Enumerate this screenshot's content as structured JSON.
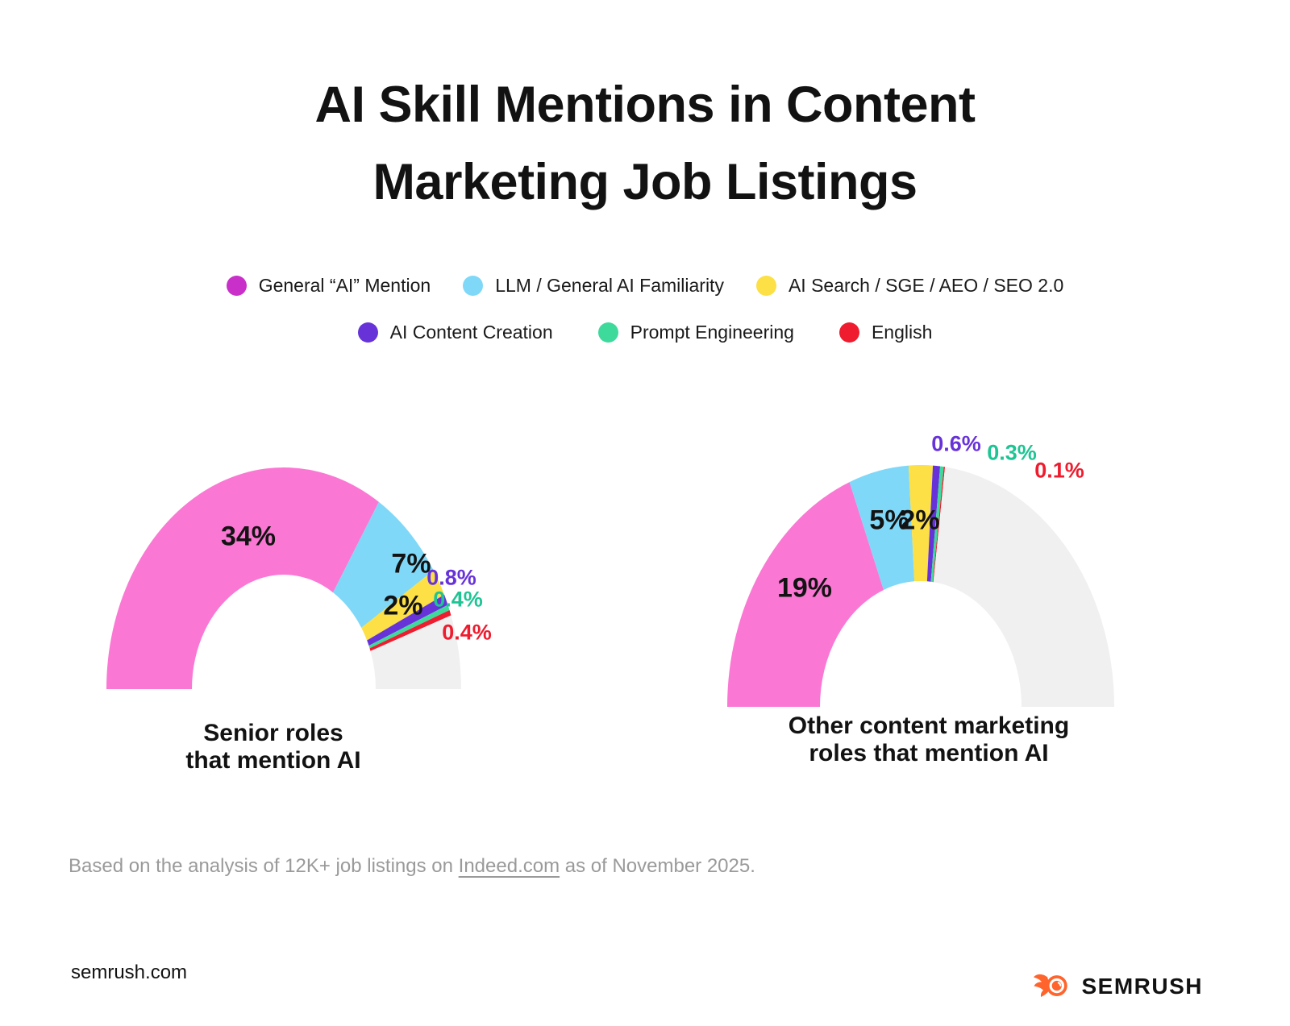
{
  "title_lines": [
    "AI Skill Mentions in Content",
    "Marketing Job Listings"
  ],
  "legend": [
    {
      "label": "General “AI” Mention",
      "color": "#C92FC9"
    },
    {
      "label": "LLM / General AI Familiarity",
      "color": "#7FD8F8"
    },
    {
      "label": "AI Search / SGE / AEO / SEO 2.0",
      "color": "#FCE045"
    },
    {
      "label": "AI Content Creation",
      "color": "#6733D9"
    },
    {
      "label": "Prompt Engineering",
      "color": "#3EDA9B"
    },
    {
      "label": "English",
      "color": "#EE1C2E"
    }
  ],
  "chart_data": [
    {
      "type": "pie",
      "variant": "half-donut-gauge",
      "title": "Senior roles that mention AI",
      "caption_lines": [
        "Senior roles",
        "that mention AI"
      ],
      "gauge_total_percent": 50,
      "categories": [
        "General “AI” Mention",
        "LLM / General AI Familiarity",
        "AI Search / SGE / AEO / SEO 2.0",
        "AI Content Creation",
        "Prompt Engineering",
        "English"
      ],
      "values": [
        34,
        7,
        2,
        0.8,
        0.4,
        0.4
      ],
      "labels": [
        "34%",
        "7%",
        "2%",
        "0.8%",
        "0.4%",
        "0.4%"
      ],
      "colors": [
        "#FB77D4",
        "#7FD8F8",
        "#FCE045",
        "#6733D9",
        "#3EDA9B",
        "#EE1C2E"
      ],
      "label_colors": [
        "#131313",
        "#131313",
        "#131313",
        "#6733D9",
        "#1EC494",
        "#EE1C2E"
      ],
      "remainder_color": "#F0F0F0"
    },
    {
      "type": "pie",
      "variant": "half-donut-gauge",
      "title": "Other content marketing roles that mention AI",
      "caption_lines": [
        "Other content marketing",
        "roles that mention AI"
      ],
      "gauge_total_percent": 50,
      "categories": [
        "General “AI” Mention",
        "LLM / General AI Familiarity",
        "AI Search / SGE / AEO / SEO 2.0",
        "AI Content Creation",
        "Prompt Engineering",
        "English"
      ],
      "values": [
        19,
        5,
        2,
        0.6,
        0.3,
        0.1
      ],
      "labels": [
        "19%",
        "5%",
        "2%",
        "0.6%",
        "0.3%",
        "0.1%"
      ],
      "colors": [
        "#FB77D4",
        "#7FD8F8",
        "#FCE045",
        "#6733D9",
        "#3EDA9B",
        "#EE1C2E"
      ],
      "label_colors": [
        "#131313",
        "#131313",
        "#131313",
        "#6733D9",
        "#1EC494",
        "#EE1C2E"
      ],
      "remainder_color": "#F0F0F0"
    }
  ],
  "footnote": {
    "prefix": "Based on the analysis of 12K+ job listings on ",
    "link": "Indeed.com",
    "suffix": " as of November 2025."
  },
  "footer": {
    "site": "semrush.com",
    "brand": "SEMRUSH",
    "brand_color": "#FF642D"
  }
}
